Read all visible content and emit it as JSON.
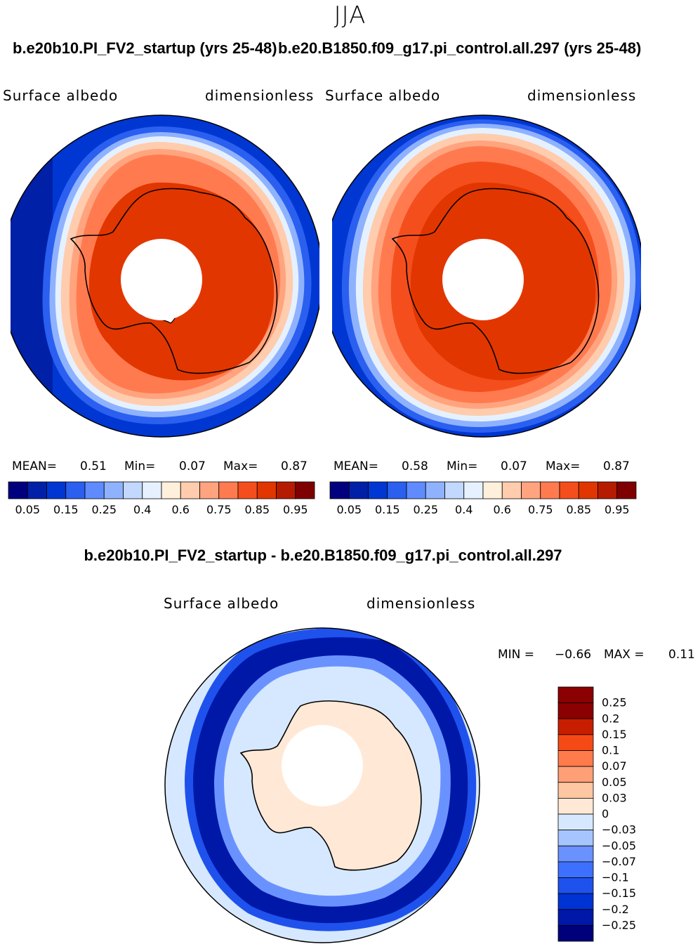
{
  "season": "JJA",
  "colors": {
    "abs_scale": [
      "#00007f",
      "#0020a8",
      "#0037d2",
      "#2a5ff0",
      "#5f8bff",
      "#8fb2ff",
      "#c2d8ff",
      "#e6f1ff",
      "#fff0dc",
      "#ffccad",
      "#ffa47f",
      "#ff7b4f",
      "#f54e1d",
      "#e23600",
      "#b51b00",
      "#7f0000"
    ],
    "diff_scale": [
      "#00007a",
      "#0018a8",
      "#0033d4",
      "#1f52ec",
      "#3e70ff",
      "#6a92ff",
      "#a6c5ff",
      "#d6e8ff",
      "#ffe8d6",
      "#ffc6a3",
      "#ff9f76",
      "#ff7b4b",
      "#f54a16",
      "#c81e00",
      "#8b0000"
    ],
    "land_line": "#000000"
  },
  "panel_left": {
    "case_title": "b.e20b10.PI_FV2_startup (yrs 25-48)",
    "variable": "Surface albedo",
    "units": "dimensionless",
    "mean_label": "MEAN=",
    "mean_value": "0.51",
    "min_label": "Min=",
    "min_value": "0.07",
    "max_label": "Max=",
    "max_value": "0.87"
  },
  "panel_right": {
    "case_title": "b.e20.B1850.f09_g17.pi_control.all.297 (yrs 25-48)",
    "variable": "Surface albedo",
    "units": "dimensionless",
    "mean_label": "MEAN=",
    "mean_value": "0.58",
    "min_label": "Min=",
    "min_value": "0.07",
    "max_label": "Max=",
    "max_value": "0.87"
  },
  "panel_diff": {
    "case_title": "b.e20b10.PI_FV2_startup - b.e20.B1850.f09_g17.pi_control.all.297",
    "variable": "Surface albedo",
    "units": "dimensionless",
    "min_label": "MIN =",
    "min_value": "−0.66",
    "max_label": "MAX =",
    "max_value": "0.11"
  },
  "chart_data": [
    {
      "type": "heatmap",
      "title": "b.e20b10.PI_FV2_startup (yrs 25-48)",
      "projection": "south polar stereographic",
      "variable": "Surface albedo",
      "units": "dimensionless",
      "mean": 0.51,
      "min": 0.07,
      "max": 0.87,
      "colorbar_ticks": [
        "0.05",
        "0.15",
        "0.25",
        "0.4",
        "0.6",
        "0.75",
        "0.85",
        "0.95"
      ],
      "contour_levels": [
        0.05,
        0.1,
        0.15,
        0.2,
        0.25,
        0.3,
        0.4,
        0.5,
        0.6,
        0.7,
        0.75,
        0.8,
        0.85,
        0.9,
        0.95
      ],
      "zones_by_latitude": [
        {
          "lat_from": -90,
          "lat_to": -75,
          "albedo": 0.85
        },
        {
          "lat_from": -75,
          "lat_to": -62,
          "albedo": 0.8
        },
        {
          "lat_from": -62,
          "lat_to": -58,
          "albedo": 0.6
        },
        {
          "lat_from": -58,
          "lat_to": -55,
          "albedo": 0.3
        },
        {
          "lat_from": -55,
          "lat_to": -30,
          "albedo": 0.1
        }
      ]
    },
    {
      "type": "heatmap",
      "title": "b.e20.B1850.f09_g17.pi_control.all.297 (yrs 25-48)",
      "projection": "south polar stereographic",
      "variable": "Surface albedo",
      "units": "dimensionless",
      "mean": 0.58,
      "min": 0.07,
      "max": 0.87,
      "colorbar_ticks": [
        "0.05",
        "0.15",
        "0.25",
        "0.4",
        "0.6",
        "0.75",
        "0.85",
        "0.95"
      ],
      "contour_levels": [
        0.05,
        0.1,
        0.15,
        0.2,
        0.25,
        0.3,
        0.4,
        0.5,
        0.6,
        0.7,
        0.75,
        0.8,
        0.85,
        0.9,
        0.95
      ],
      "zones_by_latitude": [
        {
          "lat_from": -90,
          "lat_to": -75,
          "albedo": 0.85
        },
        {
          "lat_from": -75,
          "lat_to": -57,
          "albedo": 0.8
        },
        {
          "lat_from": -57,
          "lat_to": -53,
          "albedo": 0.6
        },
        {
          "lat_from": -53,
          "lat_to": -50,
          "albedo": 0.3
        },
        {
          "lat_from": -50,
          "lat_to": -30,
          "albedo": 0.1
        }
      ]
    },
    {
      "type": "heatmap",
      "title": "b.e20b10.PI_FV2_startup - b.e20.B1850.f09_g17.pi_control.all.297",
      "projection": "south polar stereographic",
      "variable": "Surface albedo",
      "units": "dimensionless",
      "min": -0.66,
      "max": 0.11,
      "colorbar_ticks": [
        "0.25",
        "0.2",
        "0.15",
        "0.1",
        "0.07",
        "0.05",
        "0.03",
        "0",
        "−0.03",
        "−0.05",
        "−0.07",
        "−0.1",
        "−0.15",
        "−0.2",
        "−0.25"
      ],
      "zones_by_latitude": [
        {
          "lat_from": -90,
          "lat_to": -62,
          "difference": 0.01
        },
        {
          "lat_from": -62,
          "lat_to": -58,
          "difference": -0.02
        },
        {
          "lat_from": -58,
          "lat_to": -50,
          "difference": -0.3
        },
        {
          "lat_from": -50,
          "lat_to": -30,
          "difference": -0.02
        }
      ]
    }
  ]
}
